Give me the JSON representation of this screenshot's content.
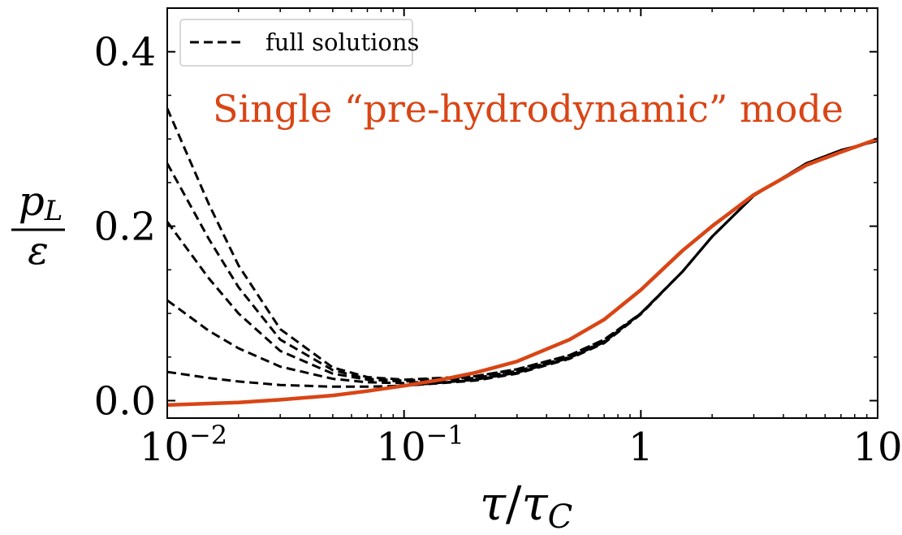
{
  "chart_data": {
    "type": "line",
    "xlabel": "τ/τC",
    "ylabel_numerator": "pL",
    "ylabel_denominator": "ε",
    "x_scale": "log",
    "xlim": [
      0.01,
      10
    ],
    "ylim": [
      -0.02,
      0.45
    ],
    "x_ticks": [
      {
        "value": 0.01,
        "base": "10",
        "exp": "−2"
      },
      {
        "value": 0.1,
        "base": "10",
        "exp": "−1"
      },
      {
        "value": 1,
        "label": "1"
      },
      {
        "value": 10,
        "label": "10"
      }
    ],
    "y_ticks": [
      {
        "value": 0.0,
        "label": "0.0"
      },
      {
        "value": 0.2,
        "label": "0.2"
      },
      {
        "value": 0.4,
        "label": "0.4"
      }
    ],
    "annotation": "Single “pre-hydrodynamic” mode",
    "legend": {
      "position": "top-left",
      "entries": [
        {
          "label": "full solutions",
          "style": "dashed",
          "color": "#000000"
        }
      ]
    },
    "colors": {
      "highlight": "#d94515",
      "full": "#000000"
    },
    "grid": false,
    "series": [
      {
        "style": "dashed",
        "color": "#000000",
        "x": [
          0.01,
          0.015,
          0.02,
          0.03,
          0.05,
          0.07,
          0.1,
          0.2,
          0.3,
          0.5,
          0.7,
          1,
          1.5,
          2,
          3,
          5,
          7,
          10
        ],
        "y": [
          0.335,
          0.225,
          0.155,
          0.082,
          0.038,
          0.027,
          0.024,
          0.028,
          0.036,
          0.052,
          0.07,
          0.1,
          0.148,
          0.188,
          0.235,
          0.272,
          0.287,
          0.298
        ]
      },
      {
        "style": "dashed",
        "color": "#000000",
        "x": [
          0.01,
          0.015,
          0.02,
          0.03,
          0.05,
          0.07,
          0.1,
          0.2,
          0.3,
          0.5,
          0.7,
          1,
          1.5,
          2,
          3,
          5,
          7,
          10
        ],
        "y": [
          0.272,
          0.185,
          0.13,
          0.07,
          0.035,
          0.025,
          0.023,
          0.028,
          0.036,
          0.052,
          0.07,
          0.1,
          0.148,
          0.188,
          0.235,
          0.272,
          0.287,
          0.298
        ]
      },
      {
        "style": "dashed",
        "color": "#000000",
        "x": [
          0.01,
          0.015,
          0.02,
          0.03,
          0.05,
          0.07,
          0.1,
          0.2,
          0.3,
          0.5,
          0.7,
          1,
          1.5,
          2,
          3,
          5,
          7,
          10
        ],
        "y": [
          0.205,
          0.14,
          0.1,
          0.057,
          0.031,
          0.024,
          0.022,
          0.027,
          0.035,
          0.051,
          0.069,
          0.1,
          0.148,
          0.188,
          0.235,
          0.272,
          0.287,
          0.298
        ]
      },
      {
        "style": "dashed",
        "color": "#000000",
        "x": [
          0.01,
          0.015,
          0.02,
          0.03,
          0.05,
          0.07,
          0.1,
          0.2,
          0.3,
          0.5,
          0.7,
          1,
          1.5,
          2,
          3,
          5,
          7,
          10
        ],
        "y": [
          0.115,
          0.08,
          0.06,
          0.039,
          0.025,
          0.021,
          0.02,
          0.026,
          0.034,
          0.05,
          0.068,
          0.1,
          0.148,
          0.188,
          0.235,
          0.272,
          0.287,
          0.298
        ]
      },
      {
        "style": "dashed",
        "color": "#000000",
        "x": [
          0.01,
          0.015,
          0.02,
          0.03,
          0.05,
          0.07,
          0.1,
          0.2,
          0.3,
          0.5,
          0.7,
          1,
          1.5,
          2,
          3,
          5,
          7,
          10
        ],
        "y": [
          0.033,
          0.026,
          0.022,
          0.018,
          0.016,
          0.016,
          0.017,
          0.023,
          0.031,
          0.048,
          0.066,
          0.099,
          0.148,
          0.188,
          0.235,
          0.272,
          0.287,
          0.298
        ]
      },
      {
        "style": "solid",
        "color": "#000000",
        "x": [
          0.1,
          0.2,
          0.3,
          0.5,
          0.7,
          1,
          1.5,
          2,
          3,
          5,
          7,
          10
        ],
        "y": [
          0.017,
          0.024,
          0.032,
          0.049,
          0.067,
          0.1,
          0.148,
          0.188,
          0.235,
          0.272,
          0.287,
          0.298
        ]
      },
      {
        "style": "solid",
        "color": "#d94515",
        "x": [
          0.01,
          0.02,
          0.03,
          0.05,
          0.07,
          0.1,
          0.15,
          0.2,
          0.3,
          0.5,
          0.7,
          1,
          1.5,
          2,
          3,
          5,
          7,
          10
        ],
        "y": [
          -0.005,
          -0.002,
          0.001,
          0.006,
          0.011,
          0.017,
          0.025,
          0.032,
          0.045,
          0.07,
          0.093,
          0.127,
          0.172,
          0.2,
          0.236,
          0.27,
          0.285,
          0.3
        ]
      }
    ]
  }
}
